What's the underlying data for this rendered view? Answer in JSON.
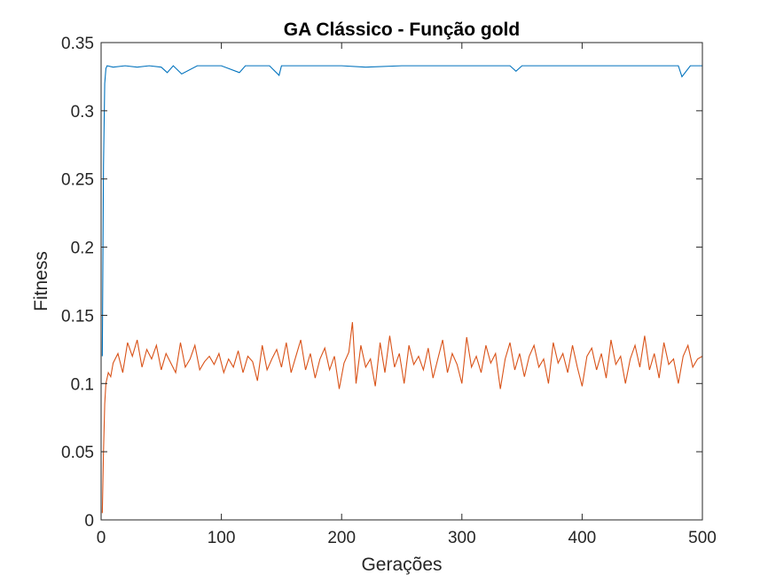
{
  "chart_data": {
    "type": "line",
    "title": "GA Clássico - Função gold",
    "xlabel": "Gerações",
    "ylabel": "Fitness",
    "xlim": [
      0,
      500
    ],
    "ylim": [
      0,
      0.35
    ],
    "xticks": [
      0,
      100,
      200,
      300,
      400,
      500
    ],
    "xtick_labels": [
      "0",
      "100",
      "200",
      "300",
      "400",
      "500"
    ],
    "yticks": [
      0,
      0.05,
      0.1,
      0.15,
      0.2,
      0.25,
      0.3,
      0.35
    ],
    "ytick_labels": [
      "0",
      "0.05",
      "0.1",
      "0.15",
      "0.2",
      "0.25",
      "0.3",
      "0.35"
    ],
    "grid": false,
    "legend": "none",
    "series": [
      {
        "color": "#0072BD",
        "x": [
          1,
          2,
          3,
          4,
          5,
          10,
          20,
          30,
          40,
          50,
          55,
          60,
          67,
          80,
          100,
          115,
          120,
          140,
          148,
          150,
          170,
          200,
          220,
          250,
          280,
          300,
          320,
          340,
          345,
          350,
          380,
          400,
          420,
          450,
          480,
          483,
          490,
          500
        ],
        "y": [
          0.12,
          0.26,
          0.32,
          0.331,
          0.333,
          0.332,
          0.333,
          0.332,
          0.333,
          0.332,
          0.328,
          0.333,
          0.327,
          0.333,
          0.333,
          0.328,
          0.333,
          0.333,
          0.326,
          0.333,
          0.333,
          0.333,
          0.332,
          0.333,
          0.333,
          0.333,
          0.333,
          0.333,
          0.329,
          0.333,
          0.333,
          0.333,
          0.333,
          0.333,
          0.333,
          0.325,
          0.333,
          0.333
        ]
      },
      {
        "color": "#D95319",
        "x": [
          1,
          2,
          3,
          4,
          6,
          8,
          10,
          14,
          18,
          22,
          26,
          30,
          34,
          38,
          42,
          46,
          50,
          54,
          58,
          62,
          66,
          70,
          74,
          78,
          82,
          86,
          90,
          94,
          98,
          102,
          106,
          110,
          114,
          118,
          122,
          126,
          130,
          134,
          138,
          142,
          146,
          150,
          154,
          158,
          162,
          166,
          170,
          174,
          178,
          182,
          186,
          190,
          194,
          198,
          202,
          206,
          209,
          212,
          216,
          220,
          224,
          228,
          232,
          236,
          240,
          244,
          248,
          252,
          256,
          260,
          264,
          268,
          272,
          276,
          280,
          284,
          288,
          292,
          296,
          300,
          304,
          308,
          312,
          316,
          320,
          324,
          328,
          332,
          336,
          340,
          344,
          348,
          352,
          356,
          360,
          364,
          368,
          372,
          376,
          380,
          384,
          388,
          392,
          396,
          400,
          404,
          408,
          412,
          416,
          420,
          424,
          428,
          432,
          436,
          440,
          444,
          448,
          452,
          456,
          460,
          464,
          468,
          472,
          476,
          480,
          484,
          488,
          492,
          496,
          500
        ],
        "y": [
          0.005,
          0.05,
          0.085,
          0.1,
          0.108,
          0.105,
          0.115,
          0.122,
          0.108,
          0.13,
          0.12,
          0.132,
          0.112,
          0.125,
          0.118,
          0.128,
          0.11,
          0.122,
          0.115,
          0.108,
          0.13,
          0.112,
          0.118,
          0.128,
          0.11,
          0.116,
          0.12,
          0.114,
          0.122,
          0.108,
          0.118,
          0.112,
          0.124,
          0.108,
          0.12,
          0.116,
          0.102,
          0.128,
          0.11,
          0.118,
          0.125,
          0.112,
          0.13,
          0.108,
          0.12,
          0.132,
          0.11,
          0.122,
          0.104,
          0.118,
          0.126,
          0.11,
          0.12,
          0.096,
          0.115,
          0.123,
          0.145,
          0.1,
          0.128,
          0.112,
          0.118,
          0.098,
          0.13,
          0.108,
          0.135,
          0.112,
          0.122,
          0.1,
          0.128,
          0.114,
          0.12,
          0.11,
          0.126,
          0.104,
          0.118,
          0.132,
          0.108,
          0.122,
          0.114,
          0.1,
          0.134,
          0.112,
          0.12,
          0.108,
          0.128,
          0.115,
          0.122,
          0.096,
          0.118,
          0.13,
          0.11,
          0.122,
          0.105,
          0.12,
          0.128,
          0.112,
          0.118,
          0.1,
          0.13,
          0.115,
          0.122,
          0.108,
          0.128,
          0.112,
          0.098,
          0.12,
          0.126,
          0.11,
          0.122,
          0.104,
          0.132,
          0.114,
          0.12,
          0.1,
          0.118,
          0.128,
          0.112,
          0.135,
          0.11,
          0.122,
          0.104,
          0.13,
          0.114,
          0.118,
          0.1,
          0.12,
          0.128,
          0.112,
          0.118,
          0.12
        ]
      }
    ]
  }
}
